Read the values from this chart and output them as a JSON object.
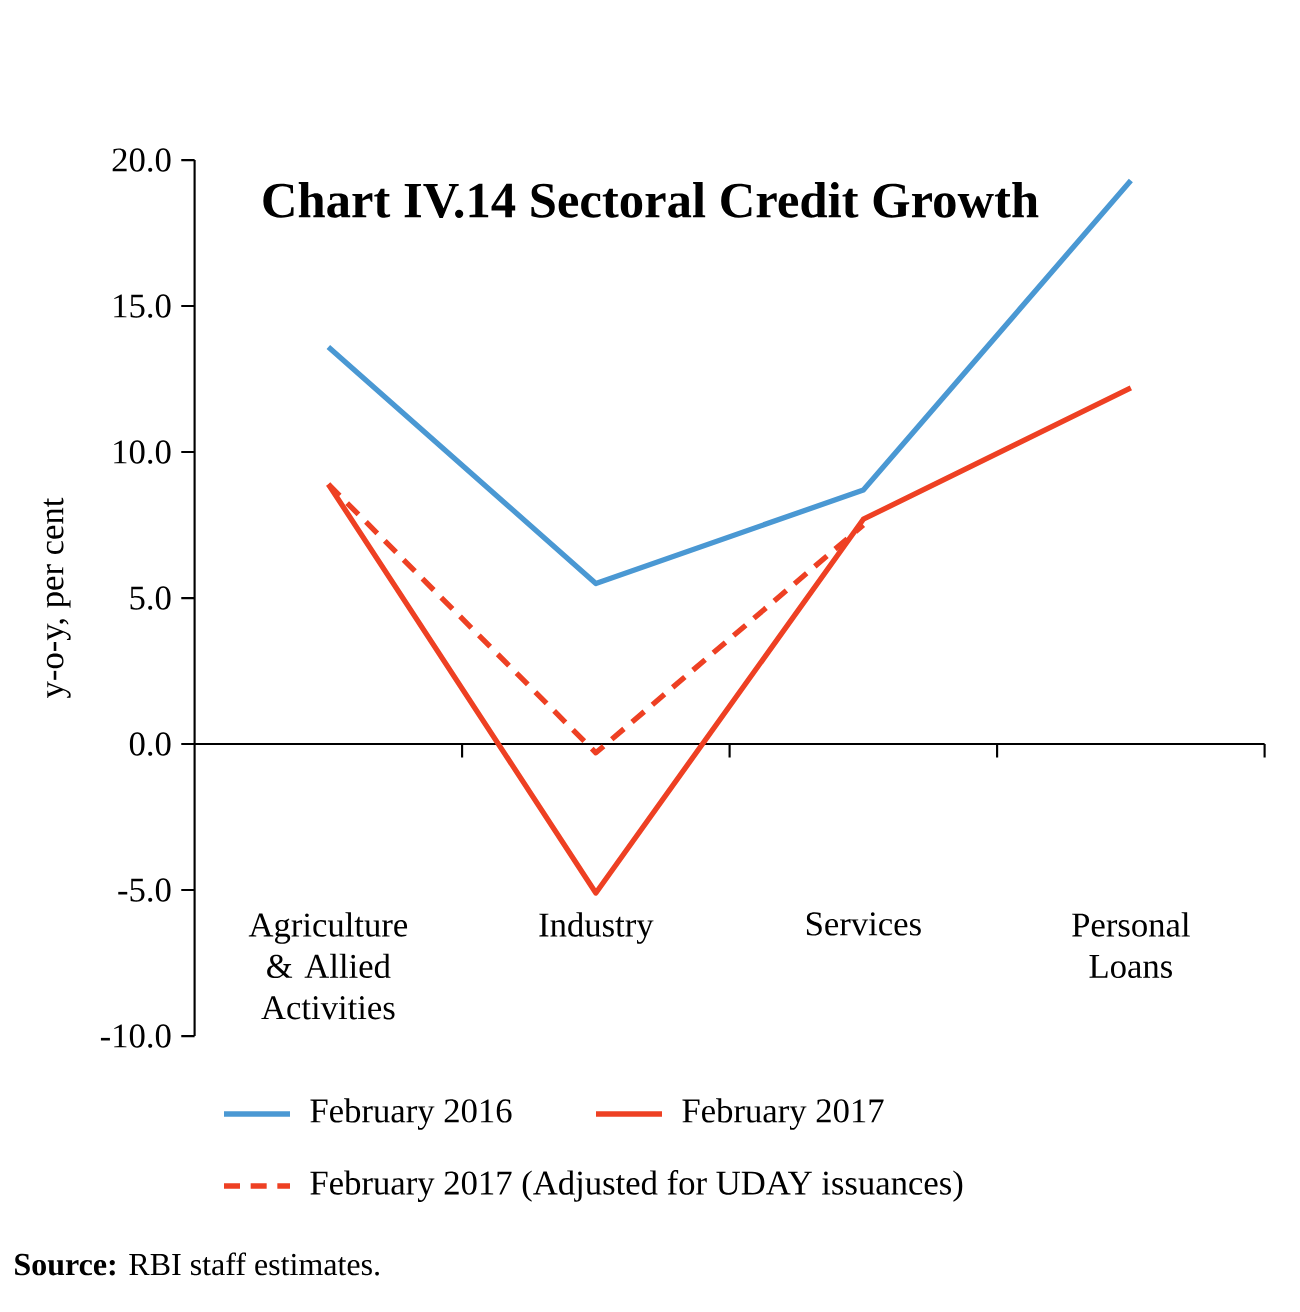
{
  "chart_data": {
    "type": "line",
    "title": "Chart IV.14 Sectoral Credit Growth",
    "ylabel": "y-o-y, per cent",
    "categories": [
      "Agriculture & Allied Activities",
      "Industry",
      "Services",
      "Personal Loans"
    ],
    "series": [
      {
        "name": "February 2016",
        "color": "#4a98d3",
        "values": [
          13.6,
          5.5,
          8.7,
          19.3
        ]
      },
      {
        "name": "February 2017",
        "color": "#ee4023",
        "values": [
          8.9,
          -5.1,
          7.7,
          12.2
        ]
      },
      {
        "name": "February 2017 (Adjusted for UDAY issuances)",
        "color": "#ee4023",
        "line_style": "dashed",
        "values": [
          8.9,
          -0.3,
          7.5,
          null
        ]
      }
    ],
    "ylim": [
      -10,
      20
    ],
    "yticks": [
      {
        "value": -10,
        "label": "-10.0"
      },
      {
        "value": -5,
        "label": "-5.0"
      },
      {
        "value": 0,
        "label": "0.0"
      },
      {
        "value": 5,
        "label": "5.0"
      },
      {
        "value": 10,
        "label": "10.0"
      },
      {
        "value": 15,
        "label": "15.0"
      },
      {
        "value": 20,
        "label": "20.0"
      }
    ],
    "legend": "bottom",
    "marker": "none",
    "line_style": "solid",
    "annotations": [
      "**Source:** RBI staff estimates."
    ]
  }
}
